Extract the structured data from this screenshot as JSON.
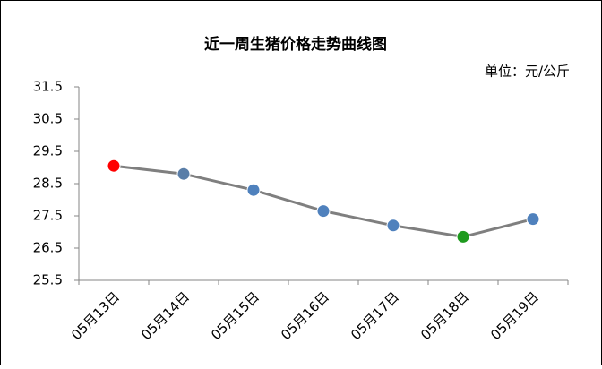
{
  "chart_data": {
    "type": "line",
    "title": "近一周生猪价格走势曲线图",
    "unit_note": "单位：元/公斤",
    "categories": [
      "05月13日",
      "05月14日",
      "05月15日",
      "05月16日",
      "05月17日",
      "05月18日",
      "05月19日"
    ],
    "values": [
      29.05,
      28.8,
      28.3,
      27.65,
      27.2,
      26.85,
      27.4
    ],
    "color": "#7f7f7f",
    "point_colors": [
      "#ff0000",
      "#5a7ea8",
      "#4f81bd",
      "#4f81bd",
      "#4f81bd",
      "#1e9a1e",
      "#4f81bd"
    ],
    "ylim": [
      25.5,
      31.5
    ],
    "yticks": [
      25.5,
      26.5,
      27.5,
      28.5,
      29.5,
      30.5,
      31.5
    ],
    "grid": false
  }
}
